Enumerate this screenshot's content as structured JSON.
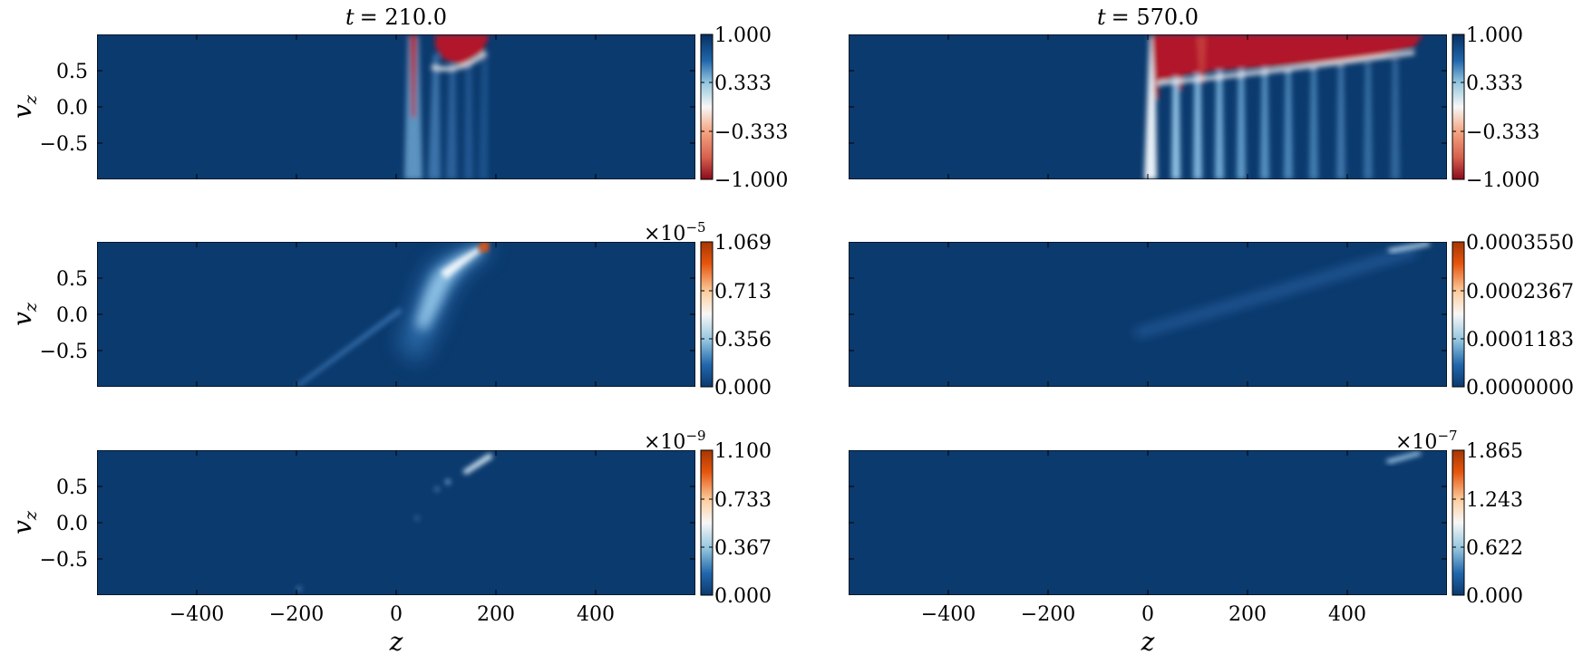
{
  "chart_data": {
    "type": "heatmap",
    "figure": {
      "xlabel": "z",
      "ylabel": "v_z",
      "xlim": [
        -600,
        600
      ],
      "ylim": [
        -1.0,
        1.0
      ],
      "xticks": [
        -400,
        -200,
        0,
        200,
        400
      ],
      "xtick_labels": [
        "−400",
        "−200",
        "0",
        "200",
        "400"
      ],
      "yticks": [
        0.5,
        0.0,
        -0.5
      ],
      "ytick_labels": [
        "0.5",
        "0.0",
        "−0.5"
      ]
    },
    "column_titles": [
      {
        "prefix": "t",
        "value": "= 210.0"
      },
      {
        "prefix": "t",
        "value": "= 570.0"
      }
    ],
    "panels": [
      {
        "name": "panel-r1-c1",
        "row": 0,
        "col": 0,
        "colormap": "RdBu",
        "vmin": -1.0,
        "vmax": 1.0,
        "colorbar_ticks": [
          "1.000",
          "0.333",
          "−0.333",
          "−1.000"
        ],
        "scale_label": ""
      },
      {
        "name": "panel-r1-c2",
        "row": 0,
        "col": 1,
        "colormap": "RdBu",
        "vmin": -1.0,
        "vmax": 1.0,
        "colorbar_ticks": [
          "1.000",
          "0.333",
          "−0.333",
          "−1.000"
        ],
        "scale_label": ""
      },
      {
        "name": "panel-r2-c1",
        "row": 1,
        "col": 0,
        "colormap": "RdBu_r",
        "vmin": 0.0,
        "vmax": 1.069e-05,
        "colorbar_ticks": [
          "1.069",
          "0.713",
          "0.356",
          "0.000"
        ],
        "scale_label": "×10",
        "scale_exp": "−5"
      },
      {
        "name": "panel-r2-c2",
        "row": 1,
        "col": 1,
        "colormap": "RdBu_r",
        "vmin": 0.0,
        "vmax": 0.000355,
        "colorbar_ticks": [
          "0.0003550",
          "0.0002367",
          "0.0001183",
          "0.0000000"
        ],
        "scale_label": ""
      },
      {
        "name": "panel-r3-c1",
        "row": 2,
        "col": 0,
        "colormap": "RdBu_r",
        "vmin": 0.0,
        "vmax": 1.1e-09,
        "colorbar_ticks": [
          "1.100",
          "0.733",
          "0.367",
          "0.000"
        ],
        "scale_label": "×10",
        "scale_exp": "−9"
      },
      {
        "name": "panel-r3-c2",
        "row": 2,
        "col": 1,
        "colormap": "RdBu_r",
        "vmin": 0.0,
        "vmax": 1.865e-07,
        "colorbar_ticks": [
          "1.865",
          "1.243",
          "0.622",
          "0.000"
        ],
        "scale_label": "×10",
        "scale_exp": "−7"
      }
    ],
    "grid": false,
    "legend": "none"
  },
  "colors": {
    "background_field": "#0b3a6e",
    "light_blue": "#6fa9d4",
    "pale": "#e6eef5",
    "red": "#b2182b",
    "orange": "#d2601a"
  }
}
